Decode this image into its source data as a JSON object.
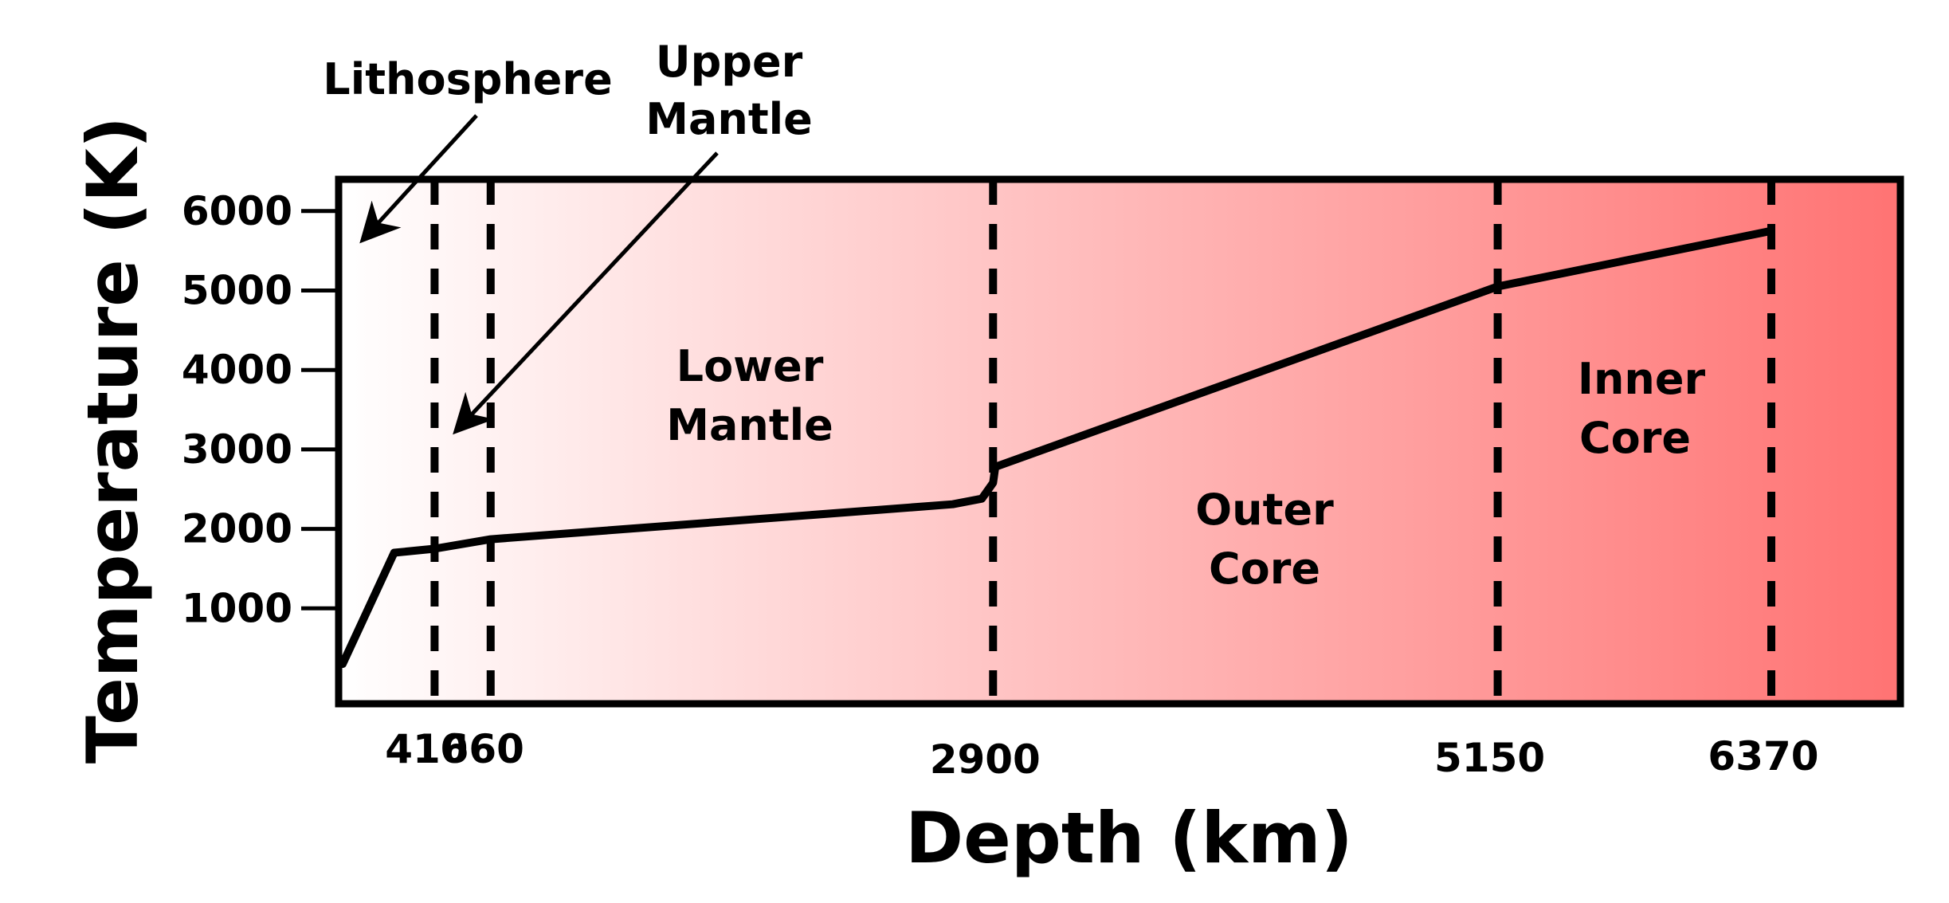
{
  "chart_data": {
    "type": "line",
    "xlabel": "Depth (km)",
    "ylabel": "Temperature (K)",
    "x_ticks": [
      410,
      660,
      2900,
      5150,
      6370
    ],
    "y_ticks": [
      1000,
      2000,
      3000,
      4000,
      5000,
      6000
    ],
    "boundaries": [
      410,
      660,
      2900,
      5150,
      6370
    ],
    "series": [
      {
        "x": [
          0,
          230,
          410,
          660,
          2720,
          2850,
          2900,
          2910,
          5150,
          6370
        ],
        "y": [
          300,
          1700,
          1750,
          1870,
          2310,
          2380,
          2580,
          2780,
          5050,
          5750
        ]
      }
    ],
    "regions": [
      {
        "lines": [
          "Lithosphere"
        ]
      },
      {
        "lines": [
          "Upper",
          "Mantle"
        ]
      },
      {
        "lines": [
          "Lower",
          "Mantle"
        ]
      },
      {
        "lines": [
          "Outer",
          "Core"
        ]
      },
      {
        "lines": [
          "Inner",
          "Core"
        ]
      }
    ],
    "background_gradient": {
      "from": "#ffffff",
      "to": "#ff7373"
    },
    "line_color": "#000000"
  }
}
